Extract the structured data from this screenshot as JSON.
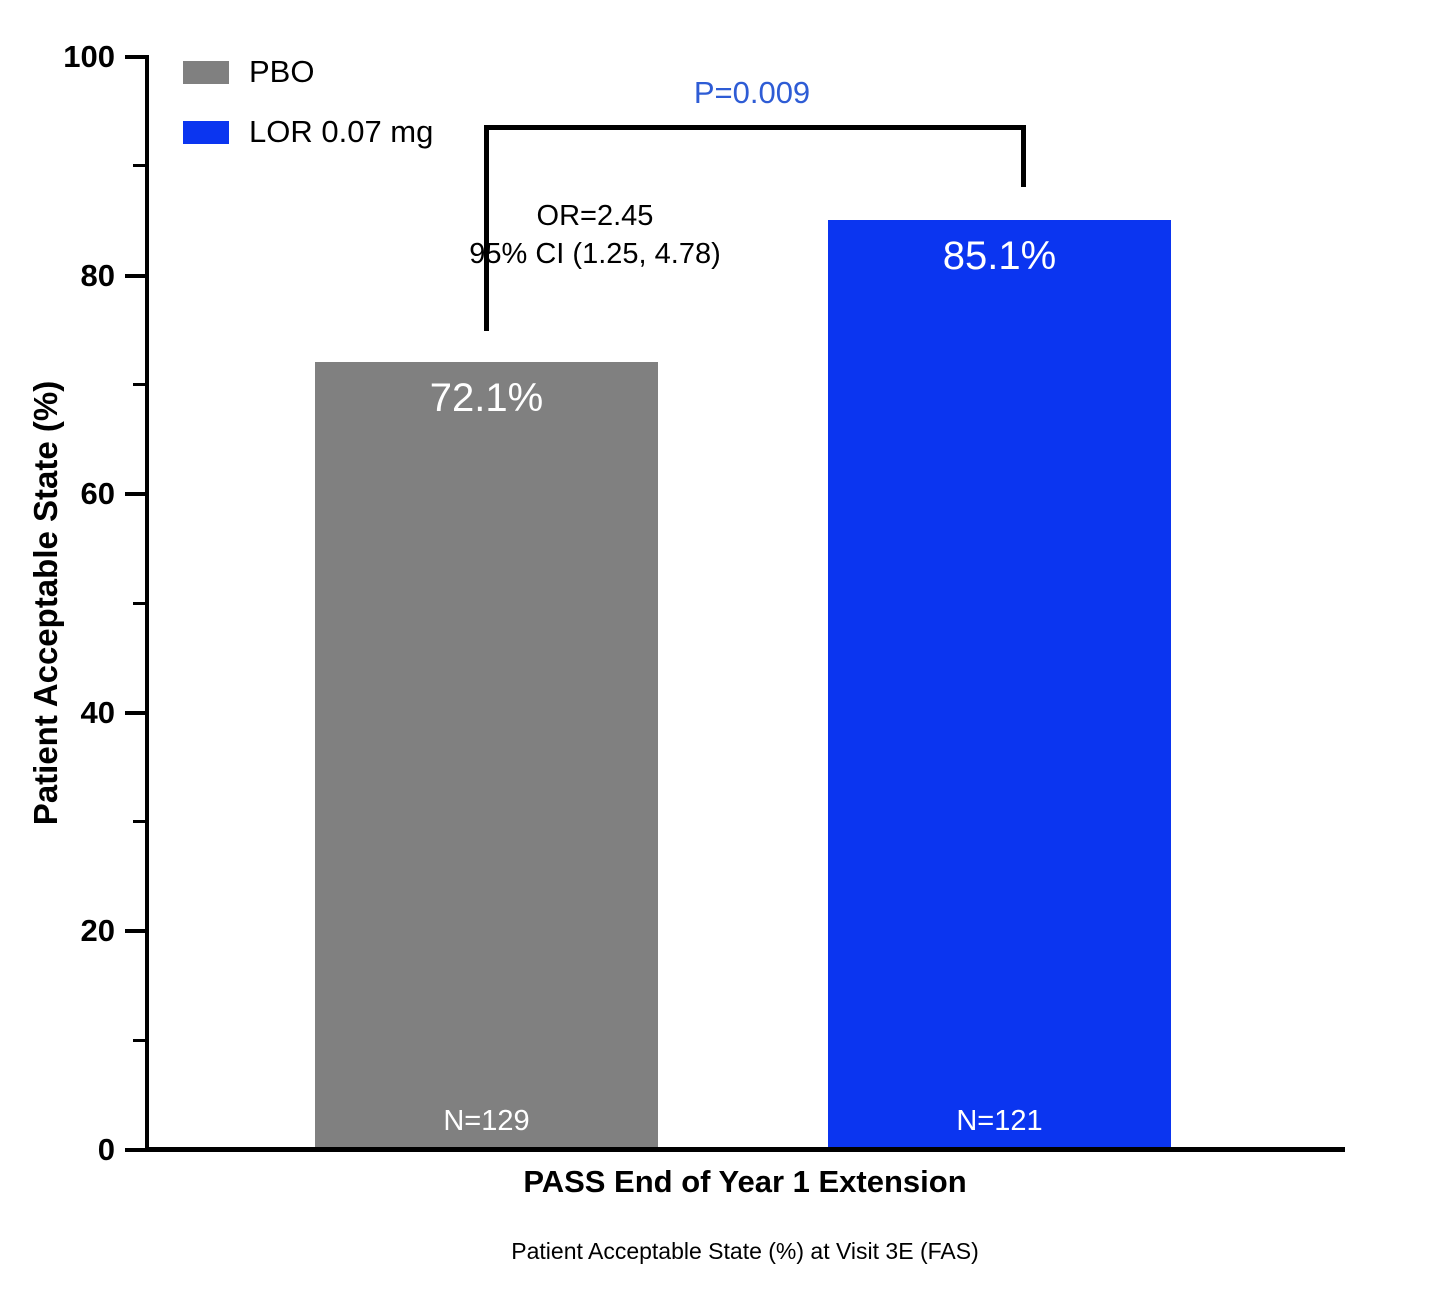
{
  "chart_data": {
    "type": "bar",
    "title": "",
    "categories": [
      "PBO",
      "LOR 0.07 mg"
    ],
    "values": [
      72.1,
      85.1
    ],
    "bar_labels": [
      "72.1%",
      "85.1%"
    ],
    "n_labels": [
      "N=129",
      "N=121"
    ],
    "bar_colors": [
      "#808080",
      "#0b35f0"
    ],
    "xlabel": "PASS End of Year 1 Extension",
    "ylabel": "Patient Acceptable State (%)",
    "ylim": [
      0,
      100
    ],
    "yticks": [
      0,
      20,
      40,
      60,
      80,
      100
    ],
    "minor_yticks": [
      10,
      30,
      50,
      70,
      90
    ],
    "grid": false,
    "legend_position": "top-left",
    "legend": [
      {
        "label": "PBO",
        "color": "#808080"
      },
      {
        "label": "LOR 0.07 mg",
        "color": "#0b35f0"
      }
    ],
    "annotations": {
      "p_value": "P=0.009",
      "p_color": "#2e5cd5",
      "or_line1": "OR=2.45",
      "or_line2": "95% CI (1.25, 4.78)"
    },
    "caption": "Patient Acceptable State (%) at Visit 3E (FAS)"
  }
}
